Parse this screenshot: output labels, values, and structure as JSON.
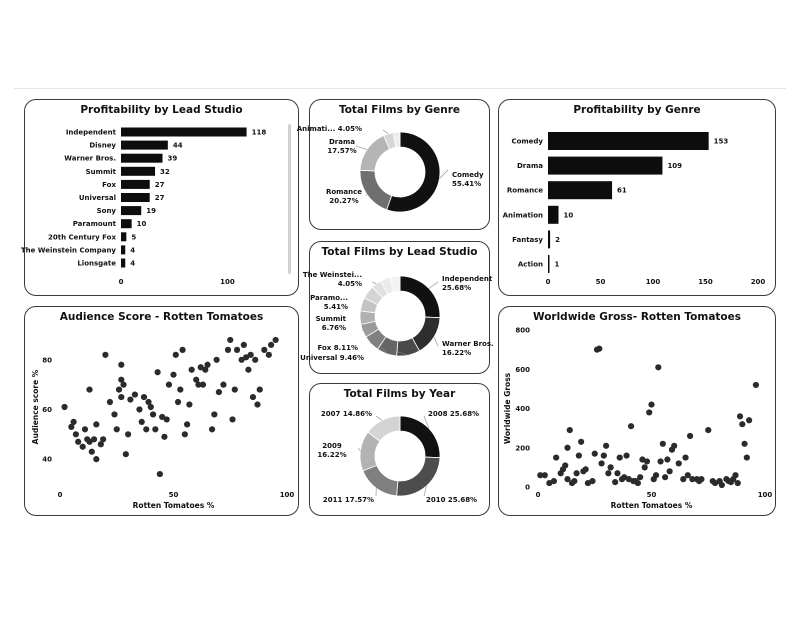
{
  "panels": {
    "studio_profit": {
      "title": "Profitability by Lead Studio"
    },
    "genre_films": {
      "title": "Total Films by Genre"
    },
    "genre_profit": {
      "title": "Profitability by Genre"
    },
    "studio_films": {
      "title": "Total Films by Lead Studio"
    },
    "year_films": {
      "title": "Total Films by Year"
    },
    "audience_scatter": {
      "title": "Audience Score - Rotten Tomatoes"
    },
    "gross_scatter": {
      "title": "Worldwide Gross- Rotten Tomatoes"
    }
  },
  "chart_data": [
    {
      "id": "studio_profit",
      "type": "bar",
      "orientation": "horizontal",
      "title": "Profitability by Lead Studio",
      "categories": [
        "Independent",
        "Disney",
        "Warner Bros.",
        "Summit",
        "Fox",
        "Universal",
        "Sony",
        "Paramount",
        "20th Century Fox",
        "The Weinstein Company",
        "Lionsgate"
      ],
      "values": [
        118,
        44,
        39,
        32,
        27,
        27,
        19,
        10,
        5,
        4,
        4
      ],
      "xticks": [
        0,
        100
      ],
      "xlim": [
        0,
        140
      ]
    },
    {
      "id": "genre_films",
      "type": "pie",
      "donut": true,
      "title": "Total Films by Genre",
      "slices": [
        {
          "name": "Comedy",
          "value": 55.41,
          "label": "55.41%",
          "color": "#111111"
        },
        {
          "name": "Romance",
          "value": 20.27,
          "label": "20.27%",
          "color": "#6f6f6f"
        },
        {
          "name": "Drama",
          "value": 17.57,
          "label": "17.57%",
          "color": "#b5b5b5"
        },
        {
          "name": "Animati...",
          "value": 4.05,
          "label": "4.05%",
          "color": "#d6d6d6"
        },
        {
          "name": "",
          "value": 2.7,
          "label": "",
          "color": "#ededed"
        }
      ]
    },
    {
      "id": "genre_profit",
      "type": "bar",
      "orientation": "horizontal",
      "title": "Profitability by Genre",
      "categories": [
        "Comedy",
        "Drama",
        "Romance",
        "Animation",
        "Fantasy",
        "Action"
      ],
      "values": [
        153,
        109,
        61,
        10,
        2,
        1
      ],
      "xticks": [
        0,
        50,
        100,
        150,
        200
      ],
      "xlim": [
        0,
        200
      ]
    },
    {
      "id": "studio_films",
      "type": "pie",
      "donut": true,
      "title": "Total Films by Lead Studio",
      "slices": [
        {
          "name": "Independent",
          "value": 25.68,
          "label": "25.68%",
          "color": "#111111"
        },
        {
          "name": "Warner Bros.",
          "value": 16.22,
          "label": "16.22%",
          "color": "#2e2e2e"
        },
        {
          "name": "Universal",
          "value": 9.46,
          "label": "9.46%",
          "color": "#4a4a4a"
        },
        {
          "name": "Fox",
          "value": 8.11,
          "label": "8.11%",
          "color": "#666666"
        },
        {
          "name": "Summit",
          "value": 6.76,
          "label": "6.76%",
          "color": "#808080"
        },
        {
          "name": "Paramo...",
          "value": 5.41,
          "label": "5.41%",
          "color": "#9a9a9a"
        },
        {
          "name": "",
          "value": 5.41,
          "label": "",
          "color": "#b0b0b0"
        },
        {
          "name": "",
          "value": 5.41,
          "label": "",
          "color": "#c4c4c4"
        },
        {
          "name": "",
          "value": 5.41,
          "label": "",
          "color": "#d4d4d4"
        },
        {
          "name": "The Weinstei...",
          "value": 4.05,
          "label": "4.05%",
          "color": "#e0e0e0"
        },
        {
          "name": "",
          "value": 4.05,
          "label": "",
          "color": "#ebebeb"
        },
        {
          "name": "",
          "value": 4.03,
          "label": "",
          "color": "#f3f3f3"
        }
      ]
    },
    {
      "id": "year_films",
      "type": "pie",
      "donut": true,
      "title": "Total Films by Year",
      "slices": [
        {
          "name": "2008",
          "value": 25.68,
          "label": "25.68%",
          "color": "#111111"
        },
        {
          "name": "2010",
          "value": 25.68,
          "label": "25.68%",
          "color": "#4d4d4d"
        },
        {
          "name": "2011",
          "value": 17.57,
          "label": "17.57%",
          "color": "#808080"
        },
        {
          "name": "2009",
          "value": 16.22,
          "label": "16.22%",
          "color": "#b3b3b3"
        },
        {
          "name": "2007",
          "value": 14.86,
          "label": "14.86%",
          "color": "#d4d4d4"
        }
      ]
    },
    {
      "id": "audience_scatter",
      "type": "scatter",
      "title": "Audience Score - Rotten Tomatoes",
      "xlabel": "Rotten Tomatoes %",
      "ylabel": "Audience score %",
      "xlim": [
        0,
        100
      ],
      "ylim": [
        30,
        92
      ],
      "xticks": [
        0,
        50,
        100
      ],
      "yticks": [
        40,
        60,
        80
      ],
      "points": [
        [
          2,
          61
        ],
        [
          5,
          53
        ],
        [
          6,
          55
        ],
        [
          7,
          50
        ],
        [
          8,
          47
        ],
        [
          10,
          45
        ],
        [
          11,
          52
        ],
        [
          12,
          48
        ],
        [
          13,
          68
        ],
        [
          13,
          47
        ],
        [
          14,
          43
        ],
        [
          15,
          48
        ],
        [
          16,
          54
        ],
        [
          16,
          40
        ],
        [
          18,
          46
        ],
        [
          19,
          48
        ],
        [
          20,
          82
        ],
        [
          22,
          63
        ],
        [
          24,
          58
        ],
        [
          25,
          52
        ],
        [
          26,
          68
        ],
        [
          27,
          78
        ],
        [
          27,
          65
        ],
        [
          27,
          72
        ],
        [
          28,
          70
        ],
        [
          29,
          42
        ],
        [
          30,
          50
        ],
        [
          31,
          64
        ],
        [
          33,
          66
        ],
        [
          35,
          60
        ],
        [
          36,
          55
        ],
        [
          37,
          65
        ],
        [
          38,
          52
        ],
        [
          39,
          63
        ],
        [
          40,
          61
        ],
        [
          41,
          58
        ],
        [
          42,
          52
        ],
        [
          43,
          75
        ],
        [
          44,
          34
        ],
        [
          45,
          57
        ],
        [
          46,
          49
        ],
        [
          47,
          56
        ],
        [
          48,
          70
        ],
        [
          50,
          74
        ],
        [
          51,
          82
        ],
        [
          52,
          63
        ],
        [
          53,
          68
        ],
        [
          54,
          84
        ],
        [
          55,
          50
        ],
        [
          56,
          54
        ],
        [
          57,
          62
        ],
        [
          58,
          76
        ],
        [
          60,
          72
        ],
        [
          61,
          70
        ],
        [
          62,
          77
        ],
        [
          63,
          70
        ],
        [
          64,
          76
        ],
        [
          65,
          78
        ],
        [
          67,
          52
        ],
        [
          68,
          58
        ],
        [
          69,
          80
        ],
        [
          70,
          67
        ],
        [
          72,
          70
        ],
        [
          74,
          84
        ],
        [
          75,
          88
        ],
        [
          76,
          56
        ],
        [
          77,
          68
        ],
        [
          78,
          84
        ],
        [
          80,
          80
        ],
        [
          81,
          86
        ],
        [
          82,
          81
        ],
        [
          83,
          76
        ],
        [
          84,
          82
        ],
        [
          85,
          65
        ],
        [
          86,
          80
        ],
        [
          87,
          62
        ],
        [
          88,
          68
        ],
        [
          90,
          84
        ],
        [
          92,
          82
        ],
        [
          93,
          86
        ],
        [
          95,
          88
        ]
      ]
    },
    {
      "id": "gross_scatter",
      "type": "scatter",
      "title": "Worldwide Gross- Rotten Tomatoes",
      "xlabel": "Rotten Tomatoes %",
      "ylabel": "Worldwide Gross",
      "xlim": [
        0,
        100
      ],
      "ylim": [
        0,
        800
      ],
      "xticks": [
        0,
        50,
        100
      ],
      "yticks": [
        0,
        200,
        400,
        600,
        800
      ],
      "points": [
        [
          1,
          60
        ],
        [
          3,
          60
        ],
        [
          5,
          20
        ],
        [
          7,
          30
        ],
        [
          8,
          150
        ],
        [
          10,
          70
        ],
        [
          11,
          90
        ],
        [
          12,
          110
        ],
        [
          13,
          200
        ],
        [
          13,
          40
        ],
        [
          14,
          290
        ],
        [
          15,
          20
        ],
        [
          16,
          30
        ],
        [
          17,
          70
        ],
        [
          18,
          160
        ],
        [
          19,
          230
        ],
        [
          20,
          80
        ],
        [
          21,
          90
        ],
        [
          22,
          20
        ],
        [
          24,
          30
        ],
        [
          25,
          170
        ],
        [
          26,
          700
        ],
        [
          27,
          705
        ],
        [
          28,
          120
        ],
        [
          29,
          160
        ],
        [
          30,
          210
        ],
        [
          31,
          70
        ],
        [
          32,
          100
        ],
        [
          34,
          25
        ],
        [
          35,
          70
        ],
        [
          36,
          150
        ],
        [
          37,
          40
        ],
        [
          38,
          50
        ],
        [
          39,
          160
        ],
        [
          40,
          40
        ],
        [
          41,
          310
        ],
        [
          42,
          30
        ],
        [
          43,
          30
        ],
        [
          44,
          20
        ],
        [
          45,
          50
        ],
        [
          46,
          140
        ],
        [
          47,
          100
        ],
        [
          48,
          130
        ],
        [
          49,
          380
        ],
        [
          50,
          420
        ],
        [
          51,
          40
        ],
        [
          52,
          60
        ],
        [
          53,
          610
        ],
        [
          54,
          130
        ],
        [
          55,
          220
        ],
        [
          56,
          50
        ],
        [
          57,
          140
        ],
        [
          58,
          80
        ],
        [
          59,
          190
        ],
        [
          60,
          210
        ],
        [
          62,
          120
        ],
        [
          64,
          40
        ],
        [
          65,
          150
        ],
        [
          66,
          60
        ],
        [
          67,
          260
        ],
        [
          68,
          40
        ],
        [
          70,
          40
        ],
        [
          71,
          30
        ],
        [
          72,
          40
        ],
        [
          75,
          290
        ],
        [
          77,
          30
        ],
        [
          78,
          20
        ],
        [
          80,
          30
        ],
        [
          81,
          10
        ],
        [
          83,
          40
        ],
        [
          84,
          30
        ],
        [
          85,
          25
        ],
        [
          86,
          40
        ],
        [
          87,
          60
        ],
        [
          88,
          20
        ],
        [
          89,
          360
        ],
        [
          90,
          320
        ],
        [
          91,
          220
        ],
        [
          92,
          150
        ],
        [
          93,
          340
        ],
        [
          96,
          520
        ]
      ]
    }
  ]
}
